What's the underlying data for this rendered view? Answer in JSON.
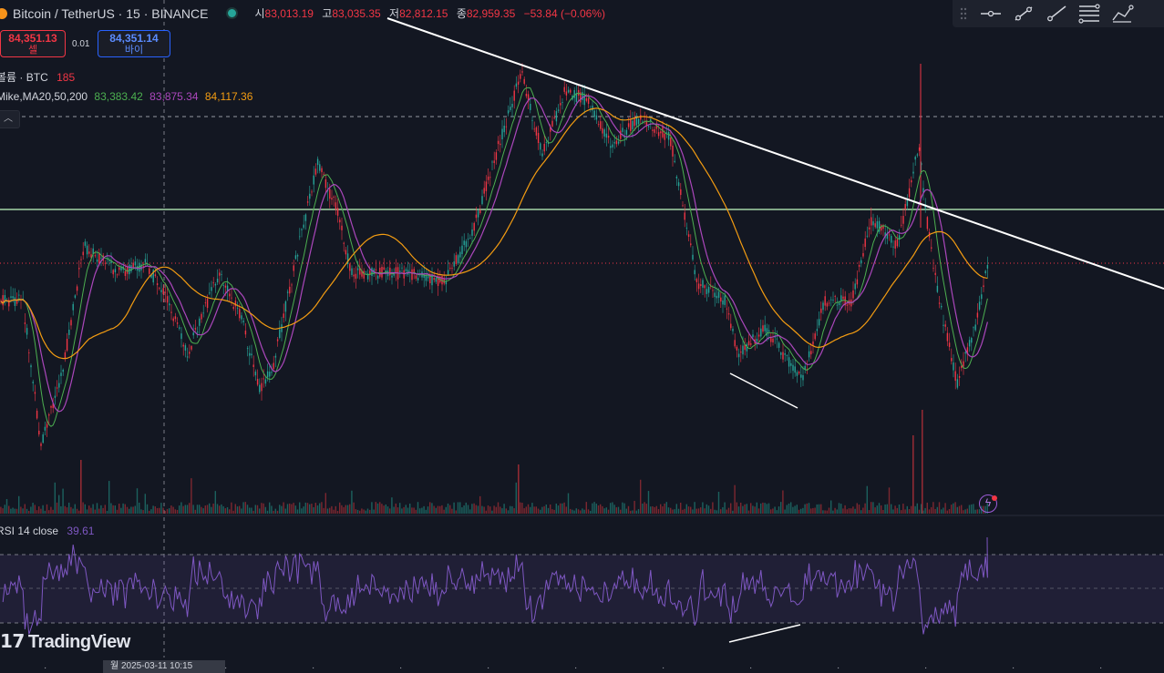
{
  "header": {
    "symbol": "Bitcoin / TetherUS · 15 · BINANCE",
    "ohlc": [
      {
        "k": "시",
        "v": "83,013.19"
      },
      {
        "k": "고",
        "v": "83,035.35"
      },
      {
        "k": "저",
        "v": "82,812.15"
      },
      {
        "k": "종",
        "v": "82,959.35"
      }
    ],
    "change": "−53.84 (−0.06%)"
  },
  "trade": {
    "sell_price": "84,351.13",
    "sell_label": "셀",
    "spread": "0.01",
    "buy_price": "84,351.14",
    "buy_label": "바이"
  },
  "indicators": {
    "volume_name": "볼륨 · BTC",
    "volume_value": "185",
    "ma_name": "Mike,MA20,50,200",
    "ma20": "83,383.42",
    "ma50": "83,875.34",
    "ma200": "84,117.36",
    "rsi_name": "RSI 14 close",
    "rsi_value": "39.61"
  },
  "colors": {
    "up": "#26a69a",
    "down": "#f23645",
    "ma20": "#4caf50",
    "ma50": "#ab47bc",
    "ma200": "#f39c12",
    "rsi": "#7e57c2",
    "support": "#a5d6a7"
  },
  "toolbar": {
    "icons": [
      "drag-handle-icon",
      "horizontal-ray-icon",
      "trend-line-icon",
      "ray-line-icon",
      "fib-retracement-icon",
      "path-icon"
    ]
  },
  "logo": {
    "text": "TradingView"
  },
  "time_axis": {
    "crosshair_date": "월 2025-03-11  10:15"
  },
  "chart_data": {
    "type": "candlestick",
    "legend": "top-left",
    "series": [
      {
        "name": "MA20",
        "color": "#4caf50"
      },
      {
        "name": "MA50",
        "color": "#ab47bc"
      },
      {
        "name": "MA200",
        "color": "#f39c12"
      }
    ]
  }
}
